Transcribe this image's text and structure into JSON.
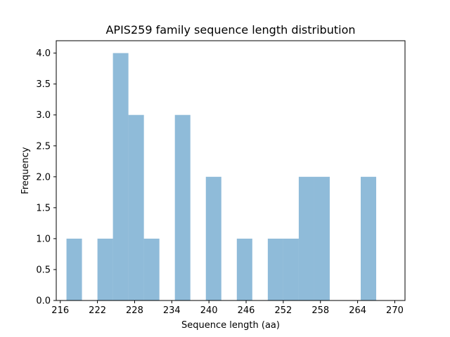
{
  "chart_data": {
    "type": "bar",
    "title": "APIS259 family sequence length distribution",
    "xlabel": "Sequence length (aa)",
    "ylabel": "Frequency",
    "xlim": [
      215.35,
      271.65
    ],
    "ylim": [
      0,
      4.2
    ],
    "bar_color": "#1f77b4",
    "bar_opacity": 0.5,
    "grid": false,
    "xticks": [
      216,
      222,
      228,
      234,
      240,
      246,
      252,
      258,
      264,
      270
    ],
    "yticks": [
      0.0,
      0.5,
      1.0,
      1.5,
      2.0,
      2.5,
      3.0,
      3.5,
      4.0
    ],
    "xtick_labels": [
      "216",
      "222",
      "228",
      "234",
      "240",
      "246",
      "252",
      "258",
      "264",
      "270"
    ],
    "ytick_labels": [
      "0.0",
      "0.5",
      "1.0",
      "1.5",
      "2.0",
      "2.5",
      "3.0",
      "3.5",
      "4.0"
    ],
    "bins": [
      {
        "start": 217.0,
        "end": 219.5,
        "count": 1
      },
      {
        "start": 219.5,
        "end": 222.0,
        "count": 0
      },
      {
        "start": 222.0,
        "end": 224.5,
        "count": 1
      },
      {
        "start": 224.5,
        "end": 227.0,
        "count": 4
      },
      {
        "start": 227.0,
        "end": 229.5,
        "count": 3
      },
      {
        "start": 229.5,
        "end": 232.0,
        "count": 1
      },
      {
        "start": 232.0,
        "end": 234.5,
        "count": 0
      },
      {
        "start": 234.5,
        "end": 237.0,
        "count": 3
      },
      {
        "start": 237.0,
        "end": 239.5,
        "count": 0
      },
      {
        "start": 239.5,
        "end": 242.0,
        "count": 2
      },
      {
        "start": 242.0,
        "end": 244.5,
        "count": 0
      },
      {
        "start": 244.5,
        "end": 247.0,
        "count": 1
      },
      {
        "start": 247.0,
        "end": 249.5,
        "count": 0
      },
      {
        "start": 249.5,
        "end": 252.0,
        "count": 1
      },
      {
        "start": 252.0,
        "end": 254.5,
        "count": 1
      },
      {
        "start": 254.5,
        "end": 257.0,
        "count": 2
      },
      {
        "start": 257.0,
        "end": 259.5,
        "count": 2
      },
      {
        "start": 259.5,
        "end": 262.0,
        "count": 0
      },
      {
        "start": 262.0,
        "end": 264.5,
        "count": 0
      },
      {
        "start": 264.5,
        "end": 267.0,
        "count": 2
      }
    ]
  }
}
